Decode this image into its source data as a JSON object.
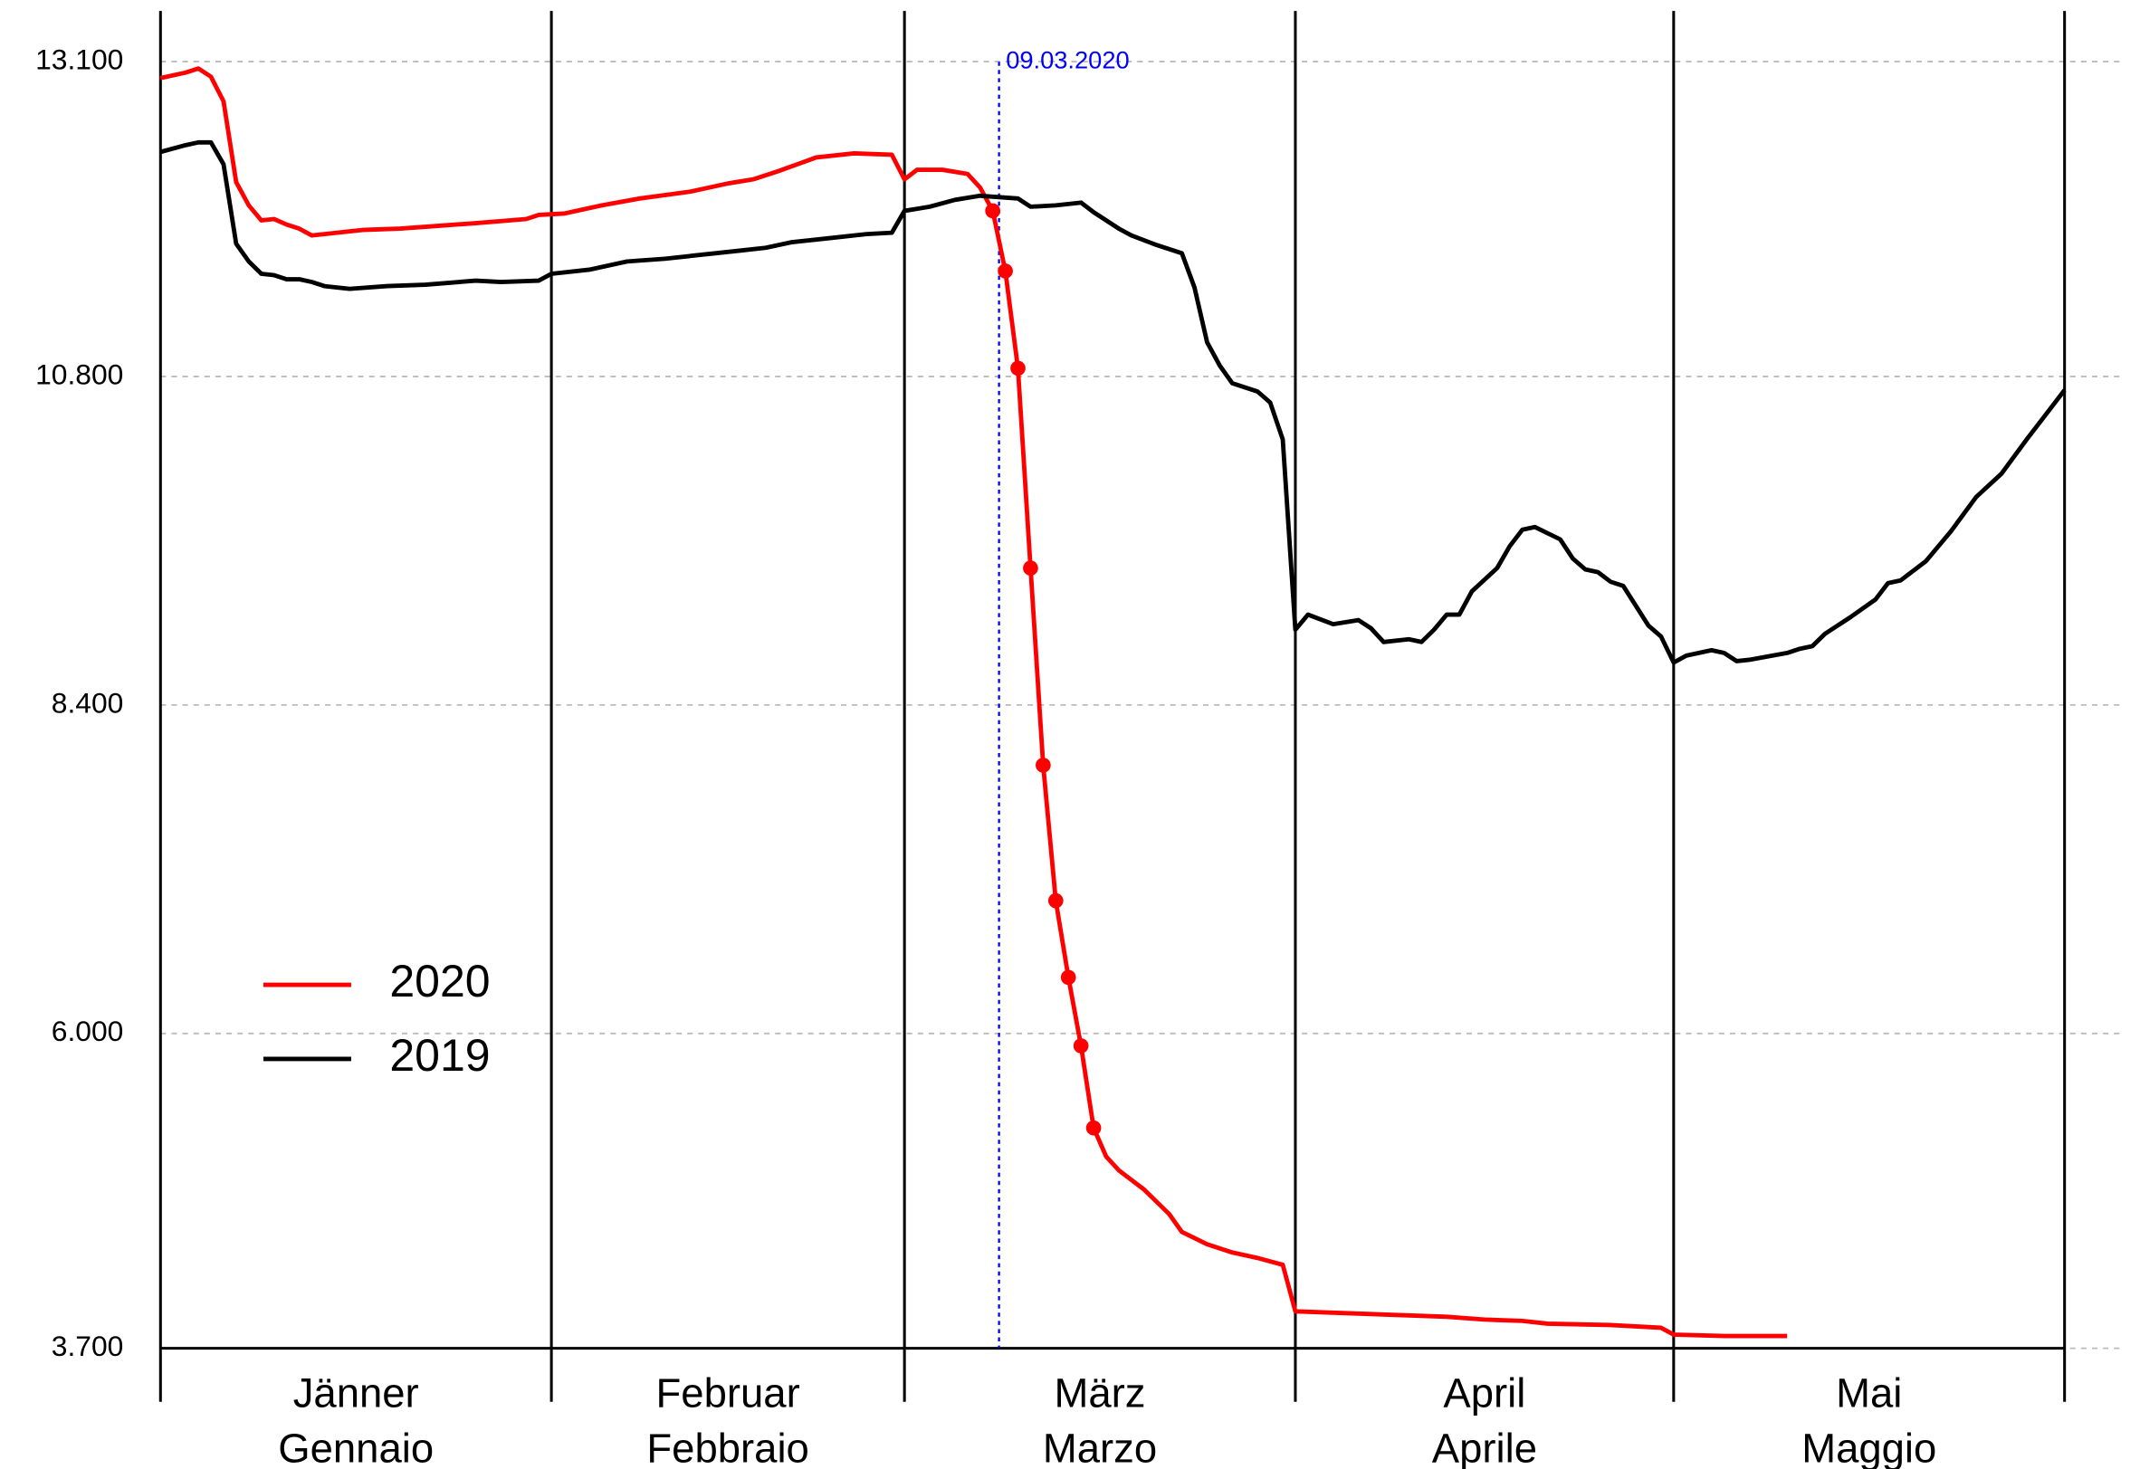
{
  "chart_data": {
    "type": "line",
    "xlim": [
      0,
      151
    ],
    "ylim": [
      3700,
      13470
    ],
    "xticks": [
      0,
      31,
      59,
      90,
      120,
      151
    ],
    "months": [
      {
        "de": "Jänner",
        "it": "Gennaio"
      },
      {
        "de": "Februar",
        "it": "Febbraio"
      },
      {
        "de": "März",
        "it": "Marzo"
      },
      {
        "de": "April",
        "it": "Aprile"
      },
      {
        "de": "Mai",
        "it": "Maggio"
      }
    ],
    "yticks": [
      {
        "value": 3700,
        "label": "3.700"
      },
      {
        "value": 6000,
        "label": "6.000"
      },
      {
        "value": 8400,
        "label": "8.400"
      },
      {
        "value": 10800,
        "label": "10.800"
      },
      {
        "value": 13100,
        "label": "13.100"
      }
    ],
    "grid": true,
    "legend": "left",
    "annotation": {
      "x": 66.5,
      "label": "09.03.2020",
      "color": "#0000ff"
    },
    "series": [
      {
        "name": "2020",
        "color": "#ff0000",
        "marker_from": 66,
        "marker_to": 74,
        "x": [
          0,
          2,
          3,
          4,
          5,
          6,
          7,
          8,
          9,
          10,
          11,
          12,
          14,
          16,
          19,
          22,
          25,
          29,
          30,
          32,
          35,
          38,
          42,
          45,
          47,
          49,
          52,
          55,
          58,
          59,
          60,
          62,
          64,
          65,
          66,
          67,
          68,
          69,
          70,
          71,
          72,
          73,
          74,
          75,
          76,
          78,
          80,
          81,
          83,
          85,
          87,
          89,
          90,
          93,
          96,
          99,
          102,
          105,
          108,
          110,
          115,
          119,
          120,
          124,
          129
        ],
        "values": [
          12980,
          13020,
          13050,
          12990,
          12810,
          12220,
          12050,
          11940,
          11950,
          11910,
          11880,
          11830,
          11850,
          11870,
          11880,
          11900,
          11920,
          11950,
          11980,
          11990,
          12050,
          12100,
          12150,
          12210,
          12240,
          12300,
          12400,
          12430,
          12420,
          12240,
          12310,
          12310,
          12280,
          12180,
          12010,
          11570,
          10860,
          9400,
          7960,
          6970,
          6410,
          5910,
          5310,
          5100,
          5000,
          4860,
          4680,
          4550,
          4460,
          4400,
          4360,
          4310,
          3970,
          3960,
          3950,
          3940,
          3930,
          3910,
          3900,
          3880,
          3870,
          3850,
          3800,
          3790,
          3790
        ]
      },
      {
        "name": "2019",
        "color": "#000000",
        "x": [
          0,
          2,
          3,
          4,
          5,
          6,
          7,
          8,
          9,
          10,
          11,
          12,
          13,
          15,
          18,
          21,
          25,
          27,
          30,
          31,
          34,
          37,
          40,
          44,
          46,
          48,
          50,
          53,
          56,
          58,
          59,
          61,
          63,
          65,
          68,
          69,
          71,
          73,
          74,
          76,
          77,
          79,
          81,
          82,
          83,
          84,
          85,
          87,
          88,
          89,
          90,
          91,
          93,
          95,
          96,
          97,
          99,
          100,
          101,
          102,
          103,
          104,
          106,
          107,
          108,
          109,
          111,
          112,
          113,
          114,
          115,
          116,
          118,
          119,
          120,
          121,
          123,
          124,
          125,
          126,
          129,
          130,
          131,
          132,
          134,
          136,
          137,
          138,
          140,
          142,
          144,
          146,
          148,
          150,
          151
        ],
        "values": [
          12440,
          12490,
          12510,
          12510,
          12350,
          11770,
          11640,
          11550,
          11540,
          11510,
          11510,
          11490,
          11460,
          11440,
          11460,
          11470,
          11500,
          11490,
          11500,
          11550,
          11580,
          11640,
          11660,
          11700,
          11720,
          11740,
          11780,
          11810,
          11840,
          11850,
          12010,
          12040,
          12090,
          12120,
          12100,
          12040,
          12050,
          12070,
          12000,
          11880,
          11830,
          11760,
          11700,
          11450,
          11050,
          10880,
          10750,
          10690,
          10610,
          10340,
          8950,
          9060,
          8990,
          9020,
          8960,
          8860,
          8880,
          8860,
          8950,
          9060,
          9060,
          9230,
          9400,
          9560,
          9680,
          9700,
          9610,
          9470,
          9390,
          9370,
          9300,
          9270,
          8980,
          8900,
          8710,
          8760,
          8800,
          8780,
          8720,
          8730,
          8780,
          8810,
          8830,
          8920,
          9040,
          9170,
          9290,
          9310,
          9450,
          9670,
          9920,
          10090,
          10340,
          10580,
          10700
        ]
      }
    ]
  }
}
